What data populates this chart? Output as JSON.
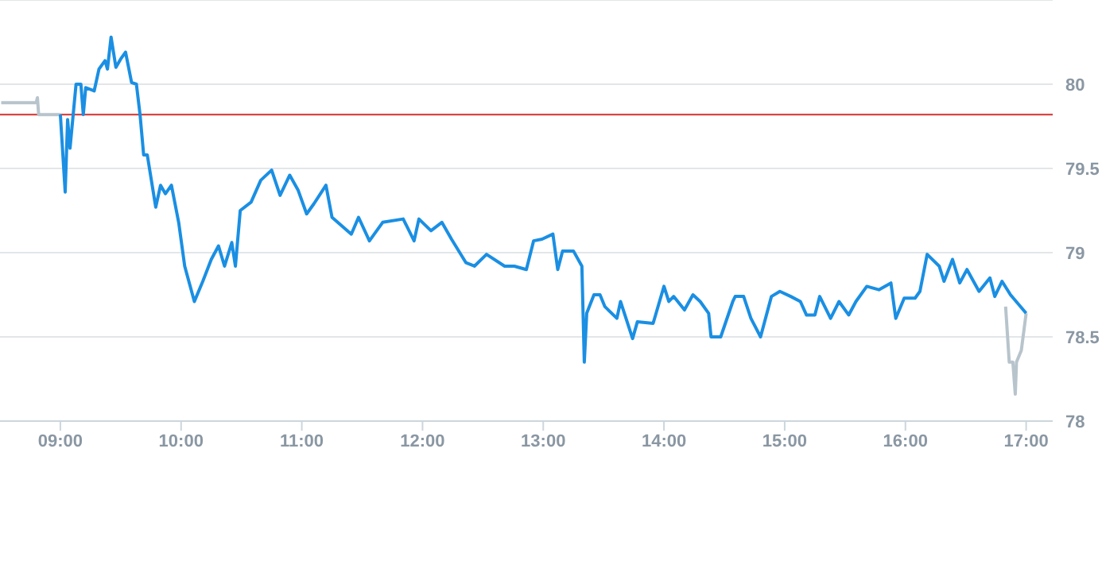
{
  "chart_data": {
    "type": "line",
    "xlim": [
      8.5,
      17.22
    ],
    "xticks": [
      {
        "value": 9,
        "label": "09:00"
      },
      {
        "value": 10,
        "label": "10:00"
      },
      {
        "value": 11,
        "label": "11:00"
      },
      {
        "value": 12,
        "label": "12:00"
      },
      {
        "value": 13,
        "label": "13:00"
      },
      {
        "value": 14,
        "label": "14:00"
      },
      {
        "value": 15,
        "label": "15:00"
      },
      {
        "value": 16,
        "label": "16:00"
      },
      {
        "value": 17,
        "label": "17:00"
      }
    ],
    "ylim": [
      78,
      80.5
    ],
    "yticks": [
      78,
      78.5,
      79,
      79.5,
      80
    ],
    "grid": "y",
    "marker": "none",
    "line_style": "solid",
    "ref_lines": [
      {
        "axis": "y",
        "value": 79.82,
        "color": "#d32f2f"
      }
    ],
    "series": [
      {
        "color": "#b8c4cc",
        "x": [
          8.51,
          8.8,
          8.81,
          8.82,
          9.0
        ],
        "values": [
          79.89,
          79.89,
          79.92,
          79.82,
          79.82
        ]
      },
      {
        "color": "#b8c4cc",
        "x": [
          16.83,
          16.86,
          16.89,
          16.91,
          16.92,
          16.96,
          17.0
        ],
        "values": [
          78.68,
          78.35,
          78.35,
          78.16,
          78.35,
          78.42,
          78.64
        ]
      },
      {
        "color": "#1a8fe3",
        "x": [
          9.0,
          9.04,
          9.06,
          9.08,
          9.13,
          9.17,
          9.19,
          9.21,
          9.28,
          9.32,
          9.37,
          9.39,
          9.42,
          9.46,
          9.5,
          9.54,
          9.59,
          9.63,
          9.66,
          9.69,
          9.72,
          9.79,
          9.83,
          9.87,
          9.92,
          9.98,
          10.03,
          10.11,
          10.18,
          10.25,
          10.31,
          10.36,
          10.42,
          10.45,
          10.49,
          10.58,
          10.66,
          10.75,
          10.82,
          10.9,
          10.97,
          11.04,
          11.1,
          11.2,
          11.25,
          11.41,
          11.47,
          11.56,
          11.67,
          11.84,
          11.93,
          11.97,
          12.07,
          12.16,
          12.24,
          12.36,
          12.43,
          12.53,
          12.68,
          12.76,
          12.86,
          12.92,
          12.99,
          13.08,
          13.12,
          13.16,
          13.25,
          13.32,
          13.34,
          13.36,
          13.42,
          13.47,
          13.51,
          13.61,
          13.64,
          13.74,
          13.78,
          13.91,
          14.0,
          14.04,
          14.08,
          14.17,
          14.24,
          14.3,
          14.37,
          14.39,
          14.47,
          14.57,
          14.59,
          14.66,
          14.72,
          14.8,
          14.89,
          14.96,
          15.05,
          15.13,
          15.18,
          15.25,
          15.29,
          15.38,
          15.45,
          15.53,
          15.59,
          15.68,
          15.78,
          15.88,
          15.92,
          15.99,
          16.08,
          16.12,
          16.18,
          16.28,
          16.32,
          16.39,
          16.45,
          16.51,
          16.61,
          16.7,
          16.74,
          16.8,
          16.87,
          17.0
        ],
        "values": [
          79.82,
          79.36,
          79.79,
          79.62,
          80.0,
          80.0,
          79.82,
          79.98,
          79.96,
          80.09,
          80.14,
          80.09,
          80.28,
          80.1,
          80.15,
          80.19,
          80.01,
          80.0,
          79.82,
          79.58,
          79.58,
          79.27,
          79.4,
          79.35,
          79.4,
          79.18,
          78.92,
          78.71,
          78.83,
          78.96,
          79.04,
          78.92,
          79.06,
          78.92,
          79.25,
          79.3,
          79.43,
          79.49,
          79.34,
          79.46,
          79.37,
          79.23,
          79.29,
          79.4,
          79.21,
          79.11,
          79.21,
          79.07,
          79.18,
          79.2,
          79.07,
          79.2,
          79.13,
          79.18,
          79.08,
          78.94,
          78.92,
          78.99,
          78.92,
          78.92,
          78.9,
          79.07,
          79.08,
          79.11,
          78.9,
          79.01,
          79.01,
          78.92,
          78.35,
          78.64,
          78.75,
          78.75,
          78.68,
          78.61,
          78.71,
          78.49,
          78.59,
          78.58,
          78.8,
          78.71,
          78.74,
          78.66,
          78.75,
          78.71,
          78.64,
          78.5,
          78.5,
          78.71,
          78.74,
          78.74,
          78.61,
          78.5,
          78.74,
          78.77,
          78.74,
          78.71,
          78.63,
          78.63,
          78.74,
          78.61,
          78.71,
          78.63,
          78.71,
          78.8,
          78.78,
          78.82,
          78.61,
          78.73,
          78.73,
          78.77,
          78.99,
          78.92,
          78.83,
          78.96,
          78.82,
          78.9,
          78.77,
          78.85,
          78.74,
          78.83,
          78.75,
          78.64
        ]
      }
    ]
  }
}
